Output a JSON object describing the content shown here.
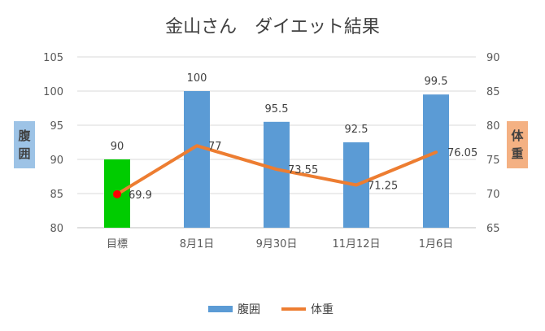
{
  "chart_data": {
    "type": "bar",
    "title": "金山さん　ダイエット結果",
    "categories": [
      "目標",
      "8月1日",
      "9月30日",
      "11月12日",
      "1月6日"
    ],
    "series": [
      {
        "name": "腹囲",
        "type": "bar",
        "axis": "left",
        "values": [
          90,
          100,
          95.5,
          92.5,
          99.5
        ],
        "labels": [
          "90",
          "100",
          "95.5",
          "92.5",
          "99.5"
        ],
        "color": "#5b9bd5",
        "highlight": {
          "index": 0,
          "color": "#00cc00"
        }
      },
      {
        "name": "体重",
        "type": "line",
        "axis": "right",
        "values": [
          69.9,
          77,
          73.55,
          71.25,
          76.05
        ],
        "labels": [
          "69.9",
          "77",
          "73.55",
          "71.25",
          "76.05"
        ],
        "color": "#ed7d31",
        "marker": {
          "index": 0,
          "color": "#ff0000"
        }
      }
    ],
    "y_left": {
      "label": "腹囲",
      "ylim": [
        80,
        105
      ],
      "ticks": [
        "80",
        "85",
        "90",
        "95",
        "100",
        "105"
      ],
      "tag_color": "#9dc3e6"
    },
    "y_right": {
      "label": "体重",
      "ylim": [
        65,
        90
      ],
      "ticks": [
        "65",
        "70",
        "75",
        "80",
        "85",
        "90"
      ],
      "tag_color": "#f4b183"
    },
    "grid": true,
    "legend": {
      "position": "bottom",
      "items": [
        "腹囲",
        "体重"
      ]
    }
  }
}
